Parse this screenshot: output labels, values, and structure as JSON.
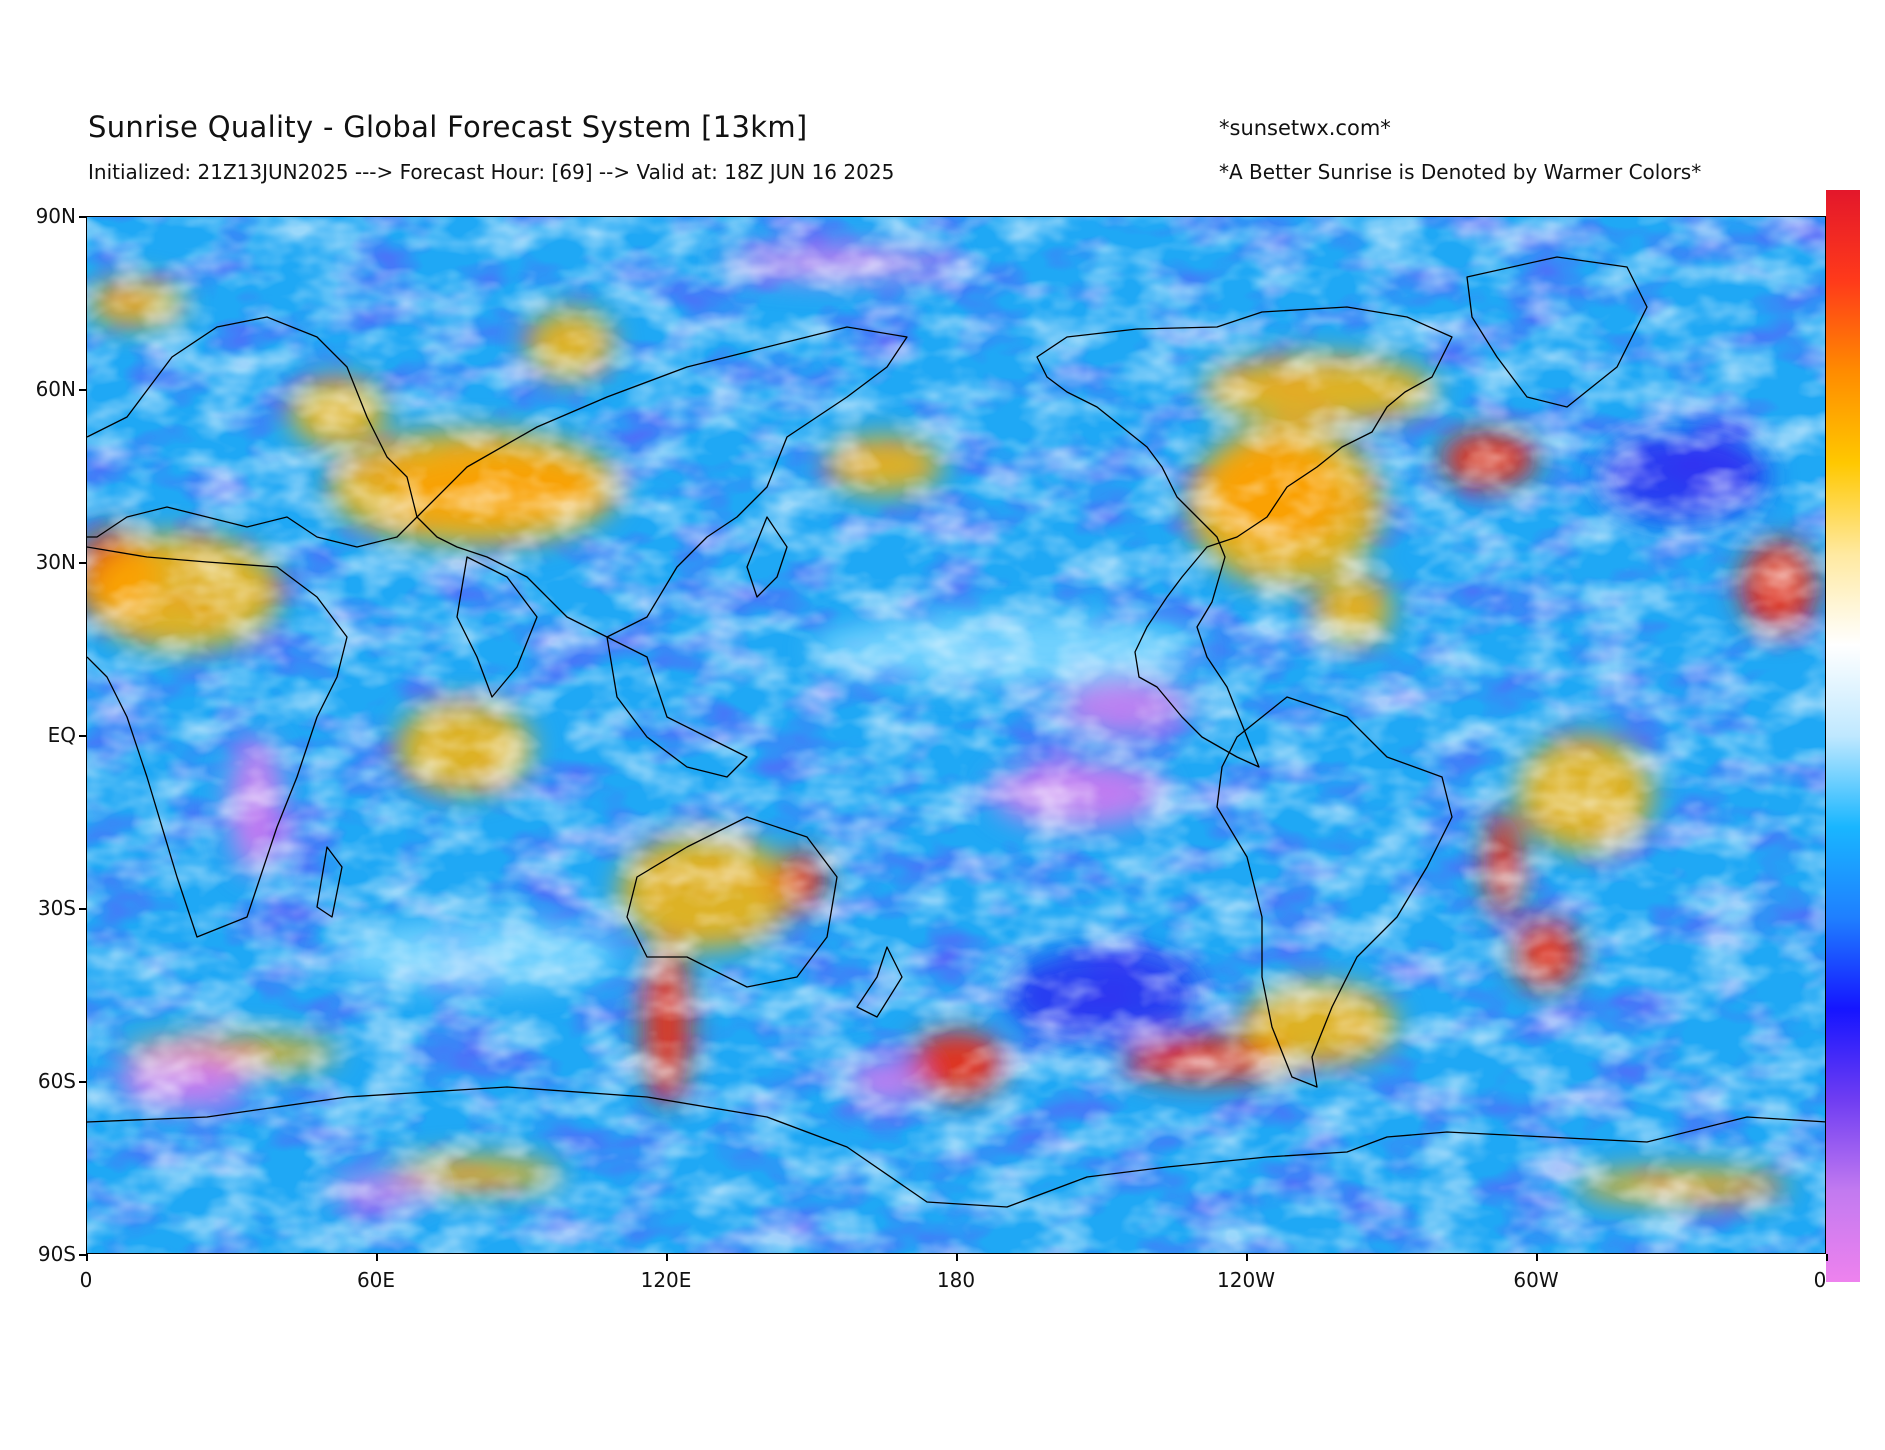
{
  "header": {
    "title": "Sunrise Quality - Global Forecast System [13km]",
    "subtitle": "Initialized: 21Z13JUN2025 ---> Forecast Hour: [69] --> Valid at: 18Z JUN 16 2025",
    "site": "*sunsetwx.com*",
    "note": "*A Better Sunrise is Denoted by Warmer Colors*"
  },
  "axes": {
    "y_ticks": [
      "90N",
      "60N",
      "30N",
      "EQ",
      "30S",
      "60S",
      "90S"
    ],
    "x_ticks": [
      "0",
      "60E",
      "120E",
      "180",
      "120W",
      "60W",
      "0"
    ],
    "lat_range": [
      -90,
      90
    ],
    "lon_range": [
      0,
      360
    ]
  },
  "colorbar": {
    "stops": [
      "#ee82ee",
      "#c27af0",
      "#6f3df2",
      "#1515ff",
      "#1f7fff",
      "#19b6ff",
      "#bfe8ff",
      "#ffffff",
      "#ffe9a0",
      "#ffc800",
      "#ff8c00",
      "#ff3a1a",
      "#e3172b"
    ]
  },
  "colors": {
    "base_ocean": "#1fa8f5",
    "warm": "#ffb400",
    "hot": "#ee2b10",
    "cold": "#2a2cf0",
    "violet": "#d77af0",
    "cyan": "#7fd8ff",
    "white": "#ffffff"
  },
  "map_regions": [
    {
      "name": "western-us-hot",
      "lon": 246,
      "lat": 42,
      "rlon": 14,
      "rlat": 9,
      "color": "hot"
    },
    {
      "name": "western-us-warm",
      "lon": 248,
      "lat": 40,
      "rlon": 20,
      "rlat": 14,
      "color": "warm"
    },
    {
      "name": "canada-warm",
      "lon": 255,
      "lat": 60,
      "rlon": 24,
      "rlat": 6,
      "color": "warm"
    },
    {
      "name": "quebec-warm",
      "lon": 290,
      "lat": 48,
      "rlon": 10,
      "rlat": 5,
      "color": "hot"
    },
    {
      "name": "sahara-hot",
      "lon": 6,
      "lat": 28,
      "rlon": 9,
      "rlat": 8,
      "color": "hot"
    },
    {
      "name": "north-africa-warm",
      "lon": 20,
      "lat": 25,
      "rlon": 20,
      "rlat": 10,
      "color": "warm"
    },
    {
      "name": "west-africa-hot",
      "lon": 350,
      "lat": 26,
      "rlon": 8,
      "rlat": 8,
      "color": "hot"
    },
    {
      "name": "central-asia-hot",
      "lon": 85,
      "lat": 43,
      "rlon": 22,
      "rlat": 6,
      "color": "hot"
    },
    {
      "name": "central-asia-warm",
      "lon": 80,
      "lat": 43,
      "rlon": 30,
      "rlat": 10,
      "color": "warm"
    },
    {
      "name": "ural-warm",
      "lon": 52,
      "lat": 56,
      "rlon": 10,
      "rlat": 6,
      "color": "warm"
    },
    {
      "name": "siberia-warm",
      "lon": 100,
      "lat": 68,
      "rlon": 9,
      "rlat": 6,
      "color": "warm"
    },
    {
      "name": "pacific-warm",
      "lon": 165,
      "lat": 47,
      "rlon": 12,
      "rlat": 5,
      "color": "warm"
    },
    {
      "name": "indian-ocean-warm",
      "lon": 78,
      "lat": -2,
      "rlon": 14,
      "rlat": 8,
      "color": "warm"
    },
    {
      "name": "australia-warm",
      "lon": 128,
      "lat": -27,
      "rlon": 18,
      "rlat": 10,
      "color": "warm"
    },
    {
      "name": "australia-east-hot",
      "lon": 148,
      "lat": -25,
      "rlon": 5,
      "rlat": 5,
      "color": "hot"
    },
    {
      "name": "south-indian-streak",
      "lon": 120,
      "lat": -50,
      "rlon": 5,
      "rlat": 14,
      "color": "hot"
    },
    {
      "name": "south-pacific-streak",
      "lon": 180,
      "lat": -57,
      "rlon": 10,
      "rlat": 6,
      "color": "hot"
    },
    {
      "name": "south-pacific-arc",
      "lon": 232,
      "lat": -56,
      "rlon": 18,
      "rlat": 4,
      "color": "hot"
    },
    {
      "name": "se-pacific-warm",
      "lon": 255,
      "lat": -50,
      "rlon": 16,
      "rlat": 7,
      "color": "warm"
    },
    {
      "name": "brazil-warm",
      "lon": 310,
      "lat": -10,
      "rlon": 14,
      "rlat": 10,
      "color": "warm"
    },
    {
      "name": "andes-hot",
      "lon": 293,
      "lat": -22,
      "rlon": 4,
      "rlat": 9,
      "color": "hot"
    },
    {
      "name": "argentina-hot",
      "lon": 302,
      "lat": -38,
      "rlon": 7,
      "rlat": 6,
      "color": "hot"
    },
    {
      "name": "south-atlantic-streak",
      "lon": 30,
      "lat": -55,
      "rlon": 22,
      "rlat": 3,
      "color": "warm"
    },
    {
      "name": "antarctic-warm-1",
      "lon": 80,
      "lat": -76,
      "rlon": 18,
      "rlat": 3,
      "color": "warm"
    },
    {
      "name": "antarctic-warm-2",
      "lon": 330,
      "lat": -78,
      "rlon": 22,
      "rlat": 3,
      "color": "warm"
    },
    {
      "name": "arctic-warm",
      "lon": 10,
      "lat": 75,
      "rlon": 10,
      "rlat": 4,
      "color": "warm"
    },
    {
      "name": "mexico-warm",
      "lon": 262,
      "lat": 22,
      "rlon": 8,
      "rlat": 6,
      "color": "warm"
    },
    {
      "name": "east-pacific-violet",
      "lon": 215,
      "lat": 5,
      "rlon": 14,
      "rlat": 5,
      "color": "violet"
    },
    {
      "name": "central-pacific-violet",
      "lon": 205,
      "lat": -10,
      "rlon": 18,
      "rlat": 6,
      "color": "violet"
    },
    {
      "name": "south-atlantic-violet",
      "lon": 20,
      "lat": -60,
      "rlon": 14,
      "rlat": 5,
      "color": "violet"
    },
    {
      "name": "southern-ocean-violet",
      "lon": 165,
      "lat": -60,
      "rlon": 8,
      "rlat": 4,
      "color": "violet"
    },
    {
      "name": "antarctic-violet",
      "lon": 60,
      "lat": -79,
      "rlon": 10,
      "rlat": 3,
      "color": "violet"
    },
    {
      "name": "africa-violet",
      "lon": 35,
      "lat": -12,
      "rlon": 6,
      "rlat": 12,
      "color": "violet"
    },
    {
      "name": "arctic-violet",
      "lon": 155,
      "lat": 82,
      "rlon": 24,
      "rlat": 3,
      "color": "violet"
    },
    {
      "name": "north-atlantic-cold",
      "lon": 330,
      "lat": 45,
      "rlon": 18,
      "rlat": 8,
      "color": "cold"
    },
    {
      "name": "south-pacific-cold",
      "lon": 210,
      "lat": -45,
      "rlon": 20,
      "rlat": 8,
      "color": "cold"
    },
    {
      "name": "equatorial-cyan",
      "lon": 190,
      "lat": 15,
      "rlon": 40,
      "rlat": 6,
      "color": "cyan"
    },
    {
      "name": "south-indian-cyan",
      "lon": 80,
      "lat": -38,
      "rlon": 30,
      "rlat": 6,
      "color": "cyan"
    }
  ]
}
